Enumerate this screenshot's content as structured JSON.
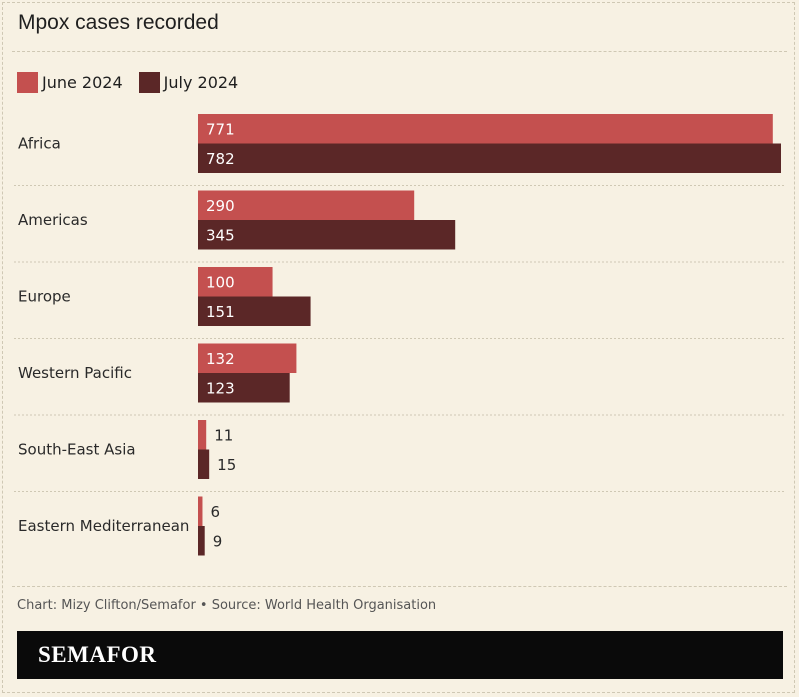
{
  "title": "Mpox cases recorded",
  "colors": {
    "june": "#c4504f",
    "july": "#5b2727",
    "gridline": "#cfc8b4"
  },
  "chart_data": {
    "type": "bar",
    "orientation": "horizontal",
    "title": "Mpox cases recorded",
    "categories": [
      "Africa",
      "Americas",
      "Europe",
      "Western Pacific",
      "South-East Asia",
      "Eastern Mediterranean"
    ],
    "series": [
      {
        "name": "June 2024",
        "values": [
          771,
          290,
          100,
          132,
          11,
          6
        ]
      },
      {
        "name": "July 2024",
        "values": [
          782,
          345,
          151,
          123,
          15,
          9
        ]
      }
    ],
    "xlim": [
      0,
      782
    ],
    "legend_position": "top-left",
    "grid": false
  },
  "legend": {
    "june_label": "June 2024",
    "july_label": "July 2024"
  },
  "source": "Chart: Mizy Clifton/Semafor • Source: World Health Organisation",
  "brand": "SEMAFOR"
}
